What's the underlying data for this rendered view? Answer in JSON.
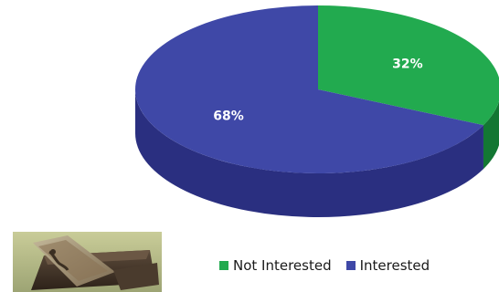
{
  "chart_data": {
    "type": "pie",
    "title": "",
    "slices": [
      {
        "label": "Not Interested",
        "value": 32,
        "display": "32%",
        "color": "#22aa4f",
        "side_color": "#137733"
      },
      {
        "label": "Interested",
        "value": 68,
        "display": "68%",
        "color": "#3f48a7",
        "side_color": "#2a2f80"
      }
    ],
    "style": "3d-tilted",
    "start_angle_deg": -90,
    "legend_position": "bottom"
  },
  "legend": {
    "items": [
      {
        "label": "Not Interested",
        "color": "#22aa4f"
      },
      {
        "label": "Interested",
        "color": "#3f48a7"
      }
    ]
  },
  "photo": {
    "description_icon": "casket-image"
  }
}
